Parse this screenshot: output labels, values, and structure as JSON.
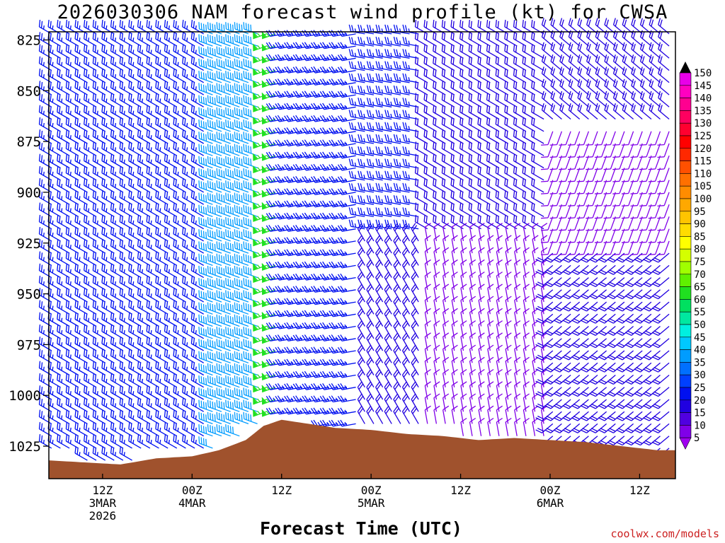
{
  "chart_data": {
    "type": "wind-barb profile",
    "title": "2026030306 NAM forecast wind profile (kt) for CWSA",
    "xlabel": "Forecast Time (UTC)",
    "credit": "coolwx.com/models",
    "y_ticks": [
      "825",
      "850",
      "875",
      "900",
      "925",
      "950",
      "975",
      "1000",
      "1025"
    ],
    "y_tick_values": [
      825,
      850,
      875,
      900,
      925,
      950,
      975,
      1000,
      1025
    ],
    "ylim": [
      821,
      1041
    ],
    "y_axis_direction": "increasing-downward",
    "xlim_hours": [
      6,
      76
    ],
    "x_ticks": [
      {
        "hour": 12,
        "lines": [
          "12Z",
          "3MAR",
          "2026"
        ]
      },
      {
        "hour": 22,
        "lines": [
          "00Z",
          "4MAR"
        ]
      },
      {
        "hour": 32,
        "lines": [
          "12Z"
        ]
      },
      {
        "hour": 42,
        "lines": [
          "00Z",
          "5MAR"
        ]
      },
      {
        "hour": 52,
        "lines": [
          "12Z"
        ]
      },
      {
        "hour": 62,
        "lines": [
          "00Z",
          "6MAR"
        ]
      },
      {
        "hour": 72,
        "lines": [
          "12Z"
        ]
      }
    ],
    "colorbar": {
      "labels": [
        "150",
        "145",
        "140",
        "135",
        "130",
        "125",
        "120",
        "115",
        "110",
        "105",
        "100",
        "95",
        "90",
        "85",
        "80",
        "75",
        "70",
        "65",
        "60",
        "55",
        "50",
        "45",
        "40",
        "35",
        "30",
        "25",
        "20",
        "15",
        "10",
        "5"
      ],
      "colors": [
        "#e800e8",
        "#ff00c0",
        "#ff0090",
        "#ff0060",
        "#ff0030",
        "#ff0000",
        "#ff2800",
        "#ff5000",
        "#ff7000",
        "#ff8c00",
        "#ffa800",
        "#ffc400",
        "#ffdc00",
        "#ffff00",
        "#d4ff00",
        "#a0ff00",
        "#60f000",
        "#20e020",
        "#00e060",
        "#00e8a0",
        "#00f0e0",
        "#00c8ff",
        "#009cff",
        "#0070ff",
        "#0040ff",
        "#0010f0",
        "#2000e0",
        "#5000e0",
        "#8000e8",
        "#a000f0"
      ]
    },
    "terrain_surface_pressure": [
      {
        "hour": 6,
        "p": 1032
      },
      {
        "hour": 10,
        "p": 1033
      },
      {
        "hour": 14,
        "p": 1034
      },
      {
        "hour": 18,
        "p": 1031
      },
      {
        "hour": 22,
        "p": 1030
      },
      {
        "hour": 25,
        "p": 1027
      },
      {
        "hour": 28,
        "p": 1022
      },
      {
        "hour": 30,
        "p": 1015
      },
      {
        "hour": 32,
        "p": 1012
      },
      {
        "hour": 35,
        "p": 1014
      },
      {
        "hour": 38,
        "p": 1016
      },
      {
        "hour": 42,
        "p": 1017
      },
      {
        "hour": 46,
        "p": 1019
      },
      {
        "hour": 50,
        "p": 1020
      },
      {
        "hour": 54,
        "p": 1022
      },
      {
        "hour": 58,
        "p": 1021
      },
      {
        "hour": 62,
        "p": 1022
      },
      {
        "hour": 66,
        "p": 1023
      },
      {
        "hour": 70,
        "p": 1025
      },
      {
        "hour": 74,
        "p": 1027
      },
      {
        "hour": 76,
        "p": 1027
      }
    ],
    "wind_regimes": [
      {
        "hours": [
          6,
          28
        ],
        "pressure": [
          821,
          1041
        ],
        "speed_kt": 25,
        "from_dir_deg": 300
      },
      {
        "hours": [
          24,
          30
        ],
        "pressure": [
          821,
          1041
        ],
        "speed_kt": 40,
        "from_dir_deg": 290
      },
      {
        "hours": [
          30,
          32
        ],
        "pressure": [
          821,
          1041
        ],
        "speed_kt": 65,
        "from_dir_deg": 250
      },
      {
        "hours": [
          32,
          41
        ],
        "pressure": [
          821,
          1041
        ],
        "speed_kt": 25,
        "from_dir_deg": 260
      },
      {
        "hours": [
          41,
          48
        ],
        "pressure": [
          821,
          920
        ],
        "speed_kt": 25,
        "from_dir_deg": 280
      },
      {
        "hours": [
          41,
          48
        ],
        "pressure": [
          920,
          1041
        ],
        "speed_kt": 20,
        "from_dir_deg": 330
      },
      {
        "hours": [
          48,
          62
        ],
        "pressure": [
          920,
          1041
        ],
        "speed_kt": 10,
        "from_dir_deg": 350
      },
      {
        "hours": [
          48,
          62
        ],
        "pressure": [
          821,
          920
        ],
        "speed_kt": 20,
        "from_dir_deg": 300
      },
      {
        "hours": [
          62,
          76
        ],
        "pressure": [
          821,
          870
        ],
        "speed_kt": 20,
        "from_dir_deg": 310
      },
      {
        "hours": [
          62,
          76
        ],
        "pressure": [
          870,
          930
        ],
        "speed_kt": 10,
        "from_dir_deg": 200
      },
      {
        "hours": [
          62,
          76
        ],
        "pressure": [
          930,
          1041
        ],
        "speed_kt": 20,
        "from_dir_deg": 230
      }
    ]
  }
}
